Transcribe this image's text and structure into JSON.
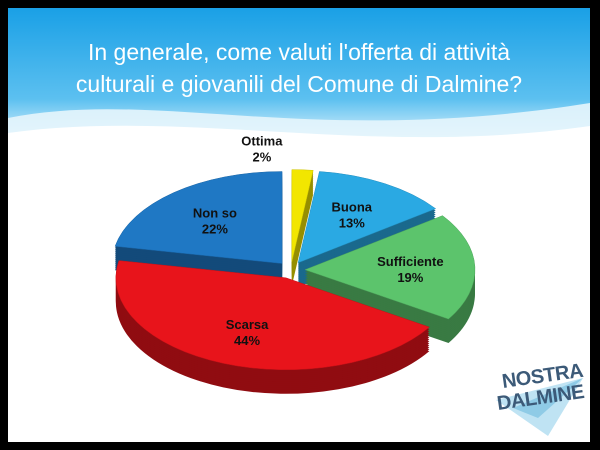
{
  "chart_data": {
    "type": "pie",
    "title": "In generale, come valuti l'offerta di attività culturali e giovanili del Comune di Dalmine?",
    "categories": [
      "Ottima",
      "Buona",
      "Sufficiente",
      "Scarsa",
      "Non so"
    ],
    "values": [
      2,
      13,
      19,
      44,
      22
    ],
    "value_labels": [
      "2%",
      "13%",
      "19%",
      "44%",
      "22%"
    ],
    "colors": [
      "#f2e600",
      "#2aa9e3",
      "#5cc46c",
      "#e8141b",
      "#1f78c4"
    ]
  },
  "logo": {
    "lines": [
      "NOSTRA",
      "DALMINE"
    ]
  }
}
